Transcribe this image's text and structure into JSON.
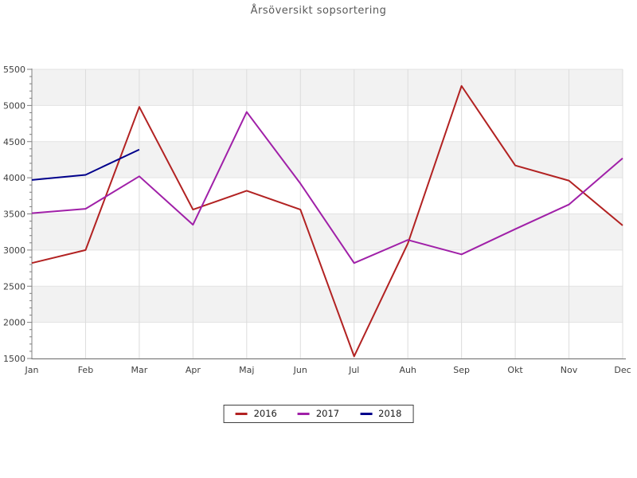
{
  "title": "Årsöversikt sopsortering",
  "chart_data": {
    "type": "line",
    "title": "Årsöversikt sopsortering",
    "categories": [
      "Jan",
      "Feb",
      "Mar",
      "Apr",
      "Maj",
      "Jun",
      "Jul",
      "Auh",
      "Sep",
      "Okt",
      "Nov",
      "Dec"
    ],
    "series": [
      {
        "name": "2016",
        "color": "#B22222",
        "values": [
          2820,
          3000,
          4980,
          3560,
          3820,
          3560,
          1530,
          3090,
          5270,
          4170,
          3960,
          3340
        ]
      },
      {
        "name": "2017",
        "color": "#A020A8",
        "values": [
          3510,
          3570,
          4020,
          3350,
          4910,
          3920,
          2820,
          3140,
          2940,
          3290,
          3630,
          4270
        ]
      },
      {
        "name": "2018",
        "color": "#00008B",
        "values": [
          3970,
          4040,
          4390
        ]
      }
    ],
    "ylim": [
      1500,
      5500
    ],
    "yticks": [
      "1500",
      "2000",
      "2500",
      "3000",
      "3500",
      "4000",
      "4500",
      "5000",
      "5500"
    ],
    "ytick_step": 500,
    "y_minor_step": 100,
    "xlabel": "",
    "ylabel": "",
    "grid": true,
    "band_colors": {
      "white": "#FFFFFF",
      "gray": "#F2F2F2"
    },
    "gridline_color": "#DCDCDC",
    "axis_color": "#808080",
    "tick_label_color": "#404040",
    "legend": {
      "position": "bottom",
      "entries": [
        "2016",
        "2017",
        "2018"
      ]
    }
  }
}
